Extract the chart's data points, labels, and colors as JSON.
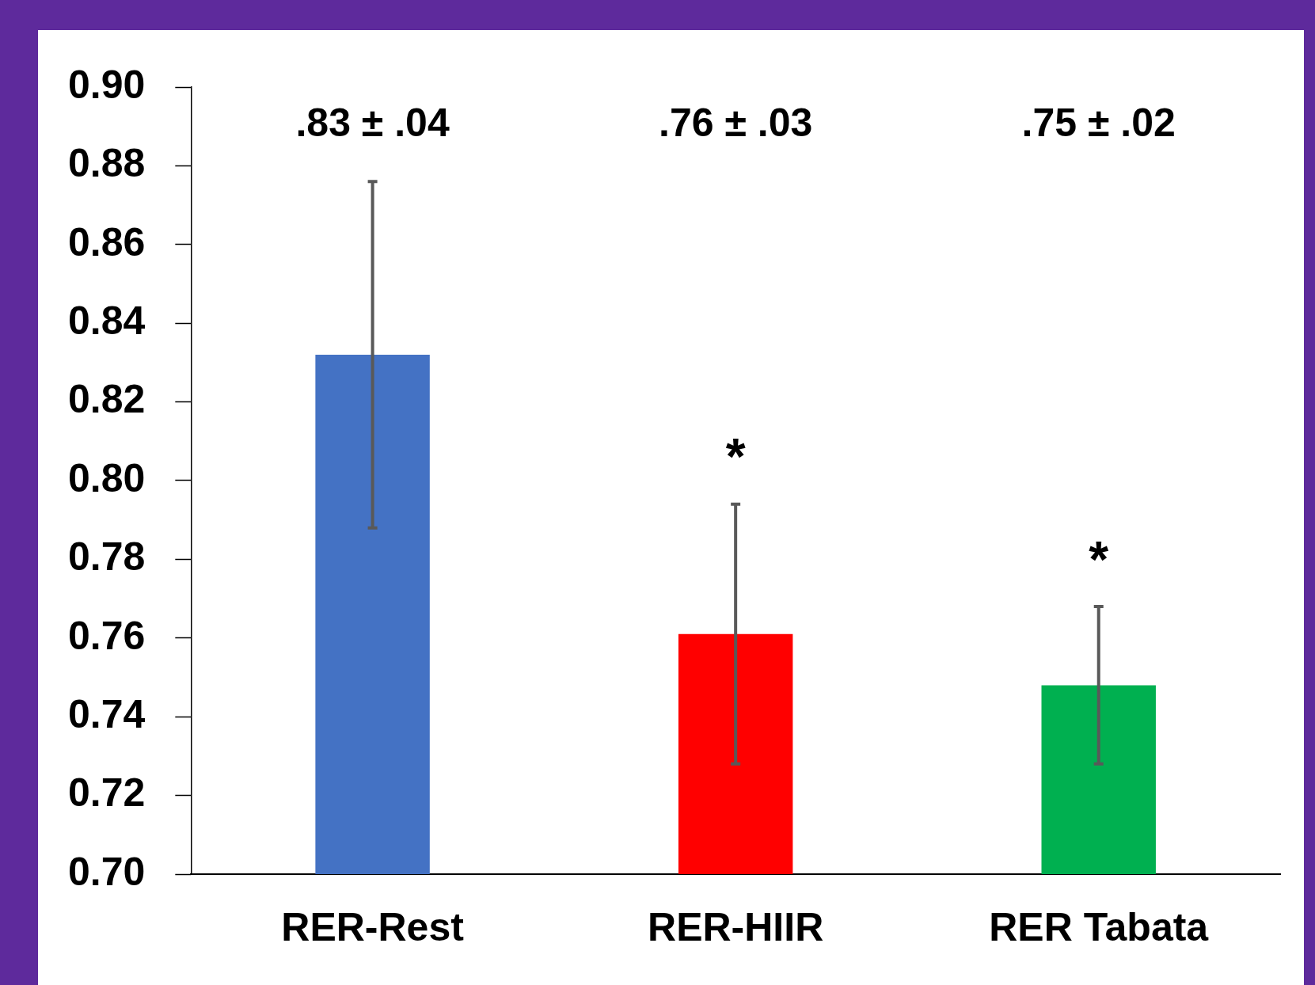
{
  "chart_data": {
    "type": "bar",
    "categories": [
      "RER-Rest",
      "RER-HIIR",
      "RER Tabata"
    ],
    "values": [
      0.832,
      0.761,
      0.748
    ],
    "colors": [
      "#4472c4",
      "#ff0000",
      "#00b050"
    ],
    "errors": [
      0.044,
      0.033,
      0.02
    ],
    "ylim": [
      0.7,
      0.9
    ],
    "yticks": [
      {
        "value": 0.7,
        "label": "0.70"
      },
      {
        "value": 0.72,
        "label": "0.72"
      },
      {
        "value": 0.74,
        "label": "0.74"
      },
      {
        "value": 0.76,
        "label": "0.76"
      },
      {
        "value": 0.78,
        "label": "0.78"
      },
      {
        "value": 0.8,
        "label": "0.80"
      },
      {
        "value": 0.82,
        "label": "0.82"
      },
      {
        "value": 0.84,
        "label": "0.84"
      },
      {
        "value": 0.86,
        "label": "0.86"
      },
      {
        "value": 0.88,
        "label": "0.88"
      },
      {
        "value": 0.9,
        "label": "0.90"
      }
    ],
    "grid": false,
    "legend": false,
    "annotations": [
      ".83 ± .04",
      ".76 ± .03",
      ".75 ± .02",
      "*",
      "*"
    ]
  }
}
